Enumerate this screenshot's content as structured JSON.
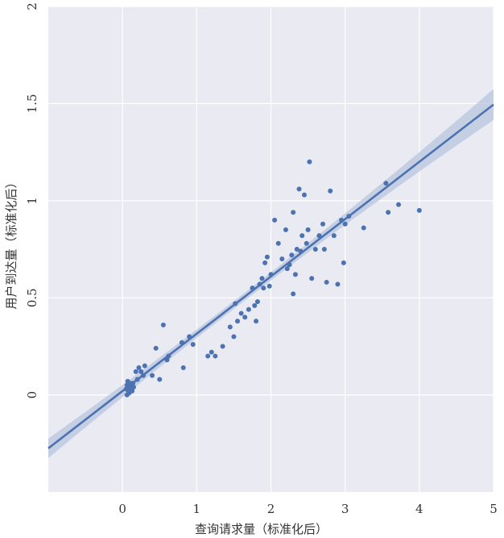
{
  "chart_data": {
    "type": "scatter",
    "title": "",
    "xlabel": "查询请求量（标准化后）",
    "ylabel": "用户到达量（标准化后）",
    "xlim": [
      -1,
      5
    ],
    "ylim": [
      -0.5,
      2
    ],
    "xticks": [
      0,
      1,
      2,
      3,
      4,
      5
    ],
    "xtick_labels": [
      "0",
      "1",
      "2",
      "3",
      "4",
      "5"
    ],
    "yticks": [
      0,
      0.5,
      1,
      1.5,
      2
    ],
    "ytick_labels": [
      "0",
      "0.5",
      "1",
      "1.5",
      "2"
    ],
    "grid": true,
    "colors": {
      "background": "#e9eaf2",
      "grid": "#ffffff",
      "points": "#4c72b0",
      "line": "#4c72b0",
      "ci_band": "#b7c5df"
    },
    "regression": {
      "slope": 0.295,
      "intercept": 0.02,
      "ci_halfwidth_at_mean": 0.02,
      "ci_halfwidth_at_x_min": 0.05,
      "ci_halfwidth_at_x_max": 0.08
    },
    "points": [
      {
        "x": 0.05,
        "y": 0.03
      },
      {
        "x": 0.06,
        "y": 0.05
      },
      {
        "x": 0.08,
        "y": 0.02
      },
      {
        "x": 0.1,
        "y": 0.04
      },
      {
        "x": 0.1,
        "y": 0.06
      },
      {
        "x": 0.12,
        "y": 0.03
      },
      {
        "x": 0.07,
        "y": 0.07
      },
      {
        "x": 0.09,
        "y": 0.01
      },
      {
        "x": 0.11,
        "y": 0.05
      },
      {
        "x": 0.13,
        "y": 0.02
      },
      {
        "x": 0.06,
        "y": 0.0
      },
      {
        "x": 0.15,
        "y": 0.04
      },
      {
        "x": 0.14,
        "y": 0.06
      },
      {
        "x": 0.08,
        "y": 0.05
      },
      {
        "x": 0.2,
        "y": 0.08
      },
      {
        "x": 0.22,
        "y": 0.14
      },
      {
        "x": 0.25,
        "y": 0.12
      },
      {
        "x": 0.28,
        "y": 0.1
      },
      {
        "x": 0.3,
        "y": 0.15
      },
      {
        "x": 0.18,
        "y": 0.12
      },
      {
        "x": 0.4,
        "y": 0.1
      },
      {
        "x": 0.45,
        "y": 0.24
      },
      {
        "x": 0.5,
        "y": 0.08
      },
      {
        "x": 0.55,
        "y": 0.36
      },
      {
        "x": 0.6,
        "y": 0.18
      },
      {
        "x": 0.62,
        "y": 0.2
      },
      {
        "x": 0.8,
        "y": 0.27
      },
      {
        "x": 0.82,
        "y": 0.14
      },
      {
        "x": 0.9,
        "y": 0.3
      },
      {
        "x": 0.95,
        "y": 0.26
      },
      {
        "x": 1.15,
        "y": 0.2
      },
      {
        "x": 1.2,
        "y": 0.22
      },
      {
        "x": 1.25,
        "y": 0.2
      },
      {
        "x": 1.35,
        "y": 0.25
      },
      {
        "x": 1.45,
        "y": 0.35
      },
      {
        "x": 1.5,
        "y": 0.3
      },
      {
        "x": 1.52,
        "y": 0.47
      },
      {
        "x": 1.55,
        "y": 0.38
      },
      {
        "x": 1.6,
        "y": 0.42
      },
      {
        "x": 1.65,
        "y": 0.4
      },
      {
        "x": 1.7,
        "y": 0.44
      },
      {
        "x": 1.75,
        "y": 0.55
      },
      {
        "x": 1.78,
        "y": 0.46
      },
      {
        "x": 1.8,
        "y": 0.38
      },
      {
        "x": 1.82,
        "y": 0.48
      },
      {
        "x": 1.85,
        "y": 0.57
      },
      {
        "x": 1.88,
        "y": 0.6
      },
      {
        "x": 1.9,
        "y": 0.55
      },
      {
        "x": 1.92,
        "y": 0.68
      },
      {
        "x": 1.95,
        "y": 0.71
      },
      {
        "x": 1.98,
        "y": 0.56
      },
      {
        "x": 2.0,
        "y": 0.62
      },
      {
        "x": 2.05,
        "y": 0.9
      },
      {
        "x": 2.1,
        "y": 0.78
      },
      {
        "x": 2.15,
        "y": 0.7
      },
      {
        "x": 2.2,
        "y": 0.85
      },
      {
        "x": 2.22,
        "y": 0.65
      },
      {
        "x": 2.25,
        "y": 0.67
      },
      {
        "x": 2.28,
        "y": 0.72
      },
      {
        "x": 2.3,
        "y": 0.94
      },
      {
        "x": 2.3,
        "y": 0.52
      },
      {
        "x": 2.33,
        "y": 0.62
      },
      {
        "x": 2.35,
        "y": 0.75
      },
      {
        "x": 2.38,
        "y": 1.06
      },
      {
        "x": 2.4,
        "y": 0.74
      },
      {
        "x": 2.42,
        "y": 0.82
      },
      {
        "x": 2.45,
        "y": 1.03
      },
      {
        "x": 2.48,
        "y": 0.78
      },
      {
        "x": 2.5,
        "y": 0.85
      },
      {
        "x": 2.52,
        "y": 1.2
      },
      {
        "x": 2.55,
        "y": 0.6
      },
      {
        "x": 2.6,
        "y": 0.75
      },
      {
        "x": 2.65,
        "y": 0.82
      },
      {
        "x": 2.7,
        "y": 0.88
      },
      {
        "x": 2.72,
        "y": 0.75
      },
      {
        "x": 2.75,
        "y": 0.58
      },
      {
        "x": 2.8,
        "y": 1.05
      },
      {
        "x": 2.85,
        "y": 0.82
      },
      {
        "x": 2.9,
        "y": 0.57
      },
      {
        "x": 2.95,
        "y": 0.9
      },
      {
        "x": 2.98,
        "y": 0.68
      },
      {
        "x": 3.0,
        "y": 0.88
      },
      {
        "x": 3.05,
        "y": 0.92
      },
      {
        "x": 3.25,
        "y": 0.86
      },
      {
        "x": 3.55,
        "y": 1.09
      },
      {
        "x": 3.58,
        "y": 0.94
      },
      {
        "x": 3.72,
        "y": 0.98
      },
      {
        "x": 4.0,
        "y": 0.95
      }
    ]
  }
}
